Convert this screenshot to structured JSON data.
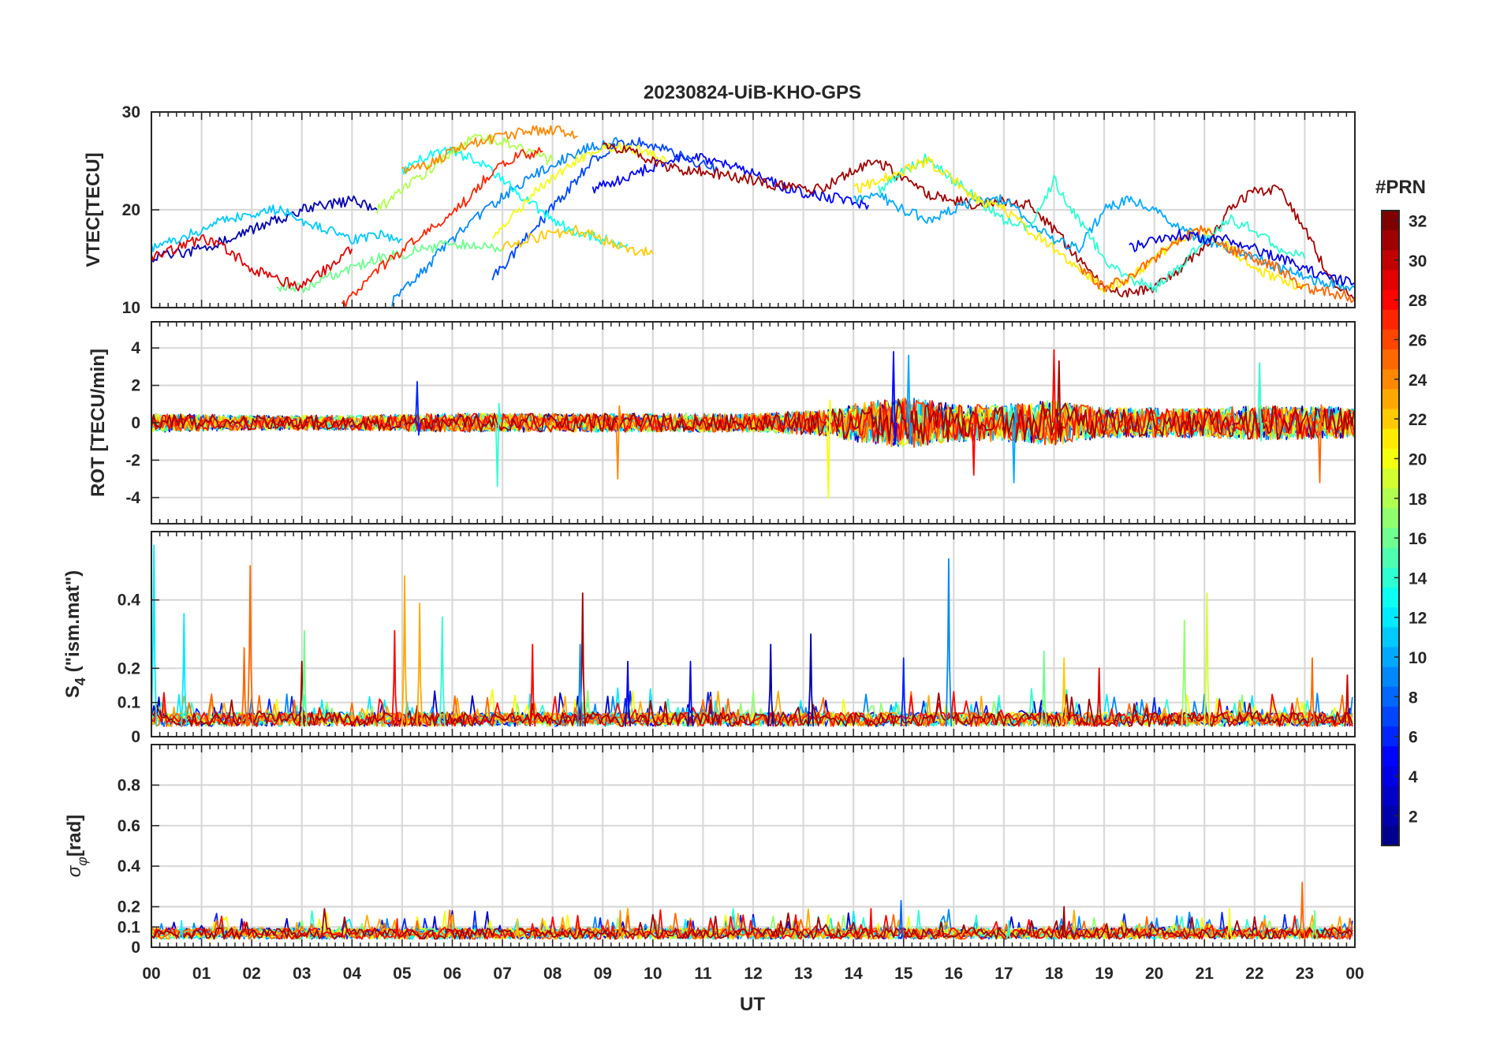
{
  "chart_data": {
    "type": "line",
    "title": "20230824-UiB-KHO-GPS",
    "xlabel": "UT",
    "x_ticks": [
      "00",
      "01",
      "02",
      "03",
      "04",
      "05",
      "06",
      "07",
      "08",
      "09",
      "10",
      "11",
      "12",
      "13",
      "14",
      "15",
      "16",
      "17",
      "18",
      "19",
      "20",
      "21",
      "22",
      "23",
      "00"
    ],
    "xlim": [
      0,
      24
    ],
    "colorbar": {
      "label": "#PRN",
      "range": [
        1,
        32
      ],
      "ticks": [
        "2",
        "4",
        "6",
        "8",
        "10",
        "12",
        "14",
        "16",
        "18",
        "20",
        "22",
        "24",
        "26",
        "28",
        "30",
        "32"
      ],
      "colormap": "jet",
      "stops": [
        "#00008f",
        "#0000ff",
        "#0080ff",
        "#00ffff",
        "#80ff80",
        "#ffff00",
        "#ff8000",
        "#ff0000",
        "#800000"
      ]
    },
    "panels": [
      {
        "id": "vtec",
        "ylabel": "VTEC[TECU]",
        "ylim": [
          10,
          30
        ],
        "y_ticks": [
          {
            "v": 10,
            "t": "10"
          },
          {
            "v": 20,
            "t": "20"
          },
          {
            "v": 30,
            "t": "30"
          }
        ],
        "series": [
          {
            "prn": 2,
            "x": [
              0,
              0.5,
              1,
              1.5,
              2,
              2.5,
              3,
              3.5,
              4,
              4.5
            ],
            "y": [
              15,
              15.5,
              16,
              17,
              18,
              19,
              20,
              20.5,
              21,
              20
            ]
          },
          {
            "prn": 5,
            "x": [
              8.8,
              9.3,
              9.8,
              10.3,
              10.8,
              11.3,
              11.8,
              12.3,
              12.8,
              13.3,
              13.8,
              14.3
            ],
            "y": [
              22,
              23,
              24,
              25,
              25.5,
              25,
              24,
              23,
              22,
              21.5,
              21,
              20.5
            ]
          },
          {
            "prn": 7,
            "x": [
              6.8,
              7.3,
              7.8,
              8.3,
              8.8,
              9.3,
              9.8,
              10.3,
              10.8,
              11.3
            ],
            "y": [
              13,
              16,
              19,
              22,
              25,
              26.5,
              27,
              26,
              25,
              24
            ]
          },
          {
            "prn": 9,
            "x": [
              4.8,
              5.3,
              5.8,
              6.3,
              6.8,
              7.3,
              7.8,
              8.3,
              8.8,
              9.3
            ],
            "y": [
              10.5,
              13,
              16,
              18.5,
              20.5,
              22.5,
              24,
              25.5,
              26.5,
              27
            ]
          },
          {
            "prn": 11,
            "x": [
              0,
              0.5,
              1,
              1.5,
              2,
              2.5,
              3,
              3.5,
              4,
              4.5,
              5
            ],
            "y": [
              16,
              17,
              18,
              19,
              19.5,
              20,
              19,
              18,
              17,
              17.5,
              17
            ]
          },
          {
            "prn": 13,
            "x": [
              5,
              5.5,
              6,
              6.5,
              7,
              7.5,
              8,
              8.5,
              9,
              9.5
            ],
            "y": [
              24,
              25.5,
              26,
              25,
              23,
              21,
              19,
              17.5,
              17,
              16.5
            ]
          },
          {
            "prn": 16,
            "x": [
              2.5,
              3,
              3.5,
              4,
              4.5,
              5,
              5.5,
              6,
              6.5,
              7
            ],
            "y": [
              12,
              12,
              13,
              14,
              15,
              15.5,
              16,
              16.5,
              16.5,
              16
            ]
          },
          {
            "prn": 18,
            "x": [
              4.5,
              5,
              5.5,
              6,
              6.5,
              7,
              7.5,
              8
            ],
            "y": [
              20,
              22,
              24,
              26,
              27.5,
              27,
              26,
              25
            ]
          },
          {
            "prn": 20,
            "x": [
              6.8,
              7.3,
              7.8,
              8.3,
              8.8,
              9.3,
              9.8,
              10.3
            ],
            "y": [
              17,
              20,
              22.5,
              24.5,
              26,
              26.5,
              26,
              25
            ]
          },
          {
            "prn": 22,
            "x": [
              7,
              7.5,
              8,
              8.5,
              9,
              9.5,
              10
            ],
            "y": [
              16,
              17,
              17.5,
              18,
              17,
              16,
              15.5
            ]
          },
          {
            "prn": 24,
            "x": [
              5,
              5.5,
              6,
              6.5,
              7,
              7.5,
              8,
              8.5
            ],
            "y": [
              24,
              24.5,
              26,
              27,
              27.5,
              28,
              28.2,
              27.5
            ]
          },
          {
            "prn": 27,
            "x": [
              3.8,
              4.3,
              4.8,
              5.3,
              5.8,
              6.3,
              6.8,
              7.3,
              7.8
            ],
            "y": [
              10,
              13,
              15,
              17,
              19,
              21,
              24,
              25.5,
              26
            ]
          },
          {
            "prn": 29,
            "x": [
              0,
              0.5,
              1,
              1.5,
              2,
              2.5,
              3,
              3.5,
              4
            ],
            "y": [
              15,
              16,
              17,
              16,
              14,
              13,
              12,
              14,
              16
            ]
          },
          {
            "prn": 31,
            "x": [
              9,
              9.5,
              10,
              10.5,
              11,
              11.5,
              12,
              12.5,
              13,
              13.5,
              14,
              14.5,
              15,
              15.5,
              16,
              16.5,
              17,
              17.5,
              18,
              18.5,
              19,
              19.5,
              20,
              20.5,
              21,
              21.5,
              22,
              22.5,
              23,
              23.5,
              24
            ],
            "y": [
              26.5,
              26,
              25,
              24,
              24,
              23.5,
              23,
              22.5,
              22,
              22.5,
              24,
              25,
              23,
              21.5,
              21,
              20.5,
              21,
              20.5,
              18,
              15,
              12,
              11.5,
              12,
              14,
              16,
              20,
              22,
              22,
              18,
              13,
              11
            ]
          },
          {
            "prn": 10,
            "x": [
              14,
              14.5,
              15,
              15.5,
              16,
              16.5,
              17,
              17.5,
              18,
              18.5,
              19,
              19.5,
              20,
              20.5,
              21,
              21.5,
              22,
              22.5,
              23,
              23.5,
              24
            ],
            "y": [
              21,
              21.5,
              20,
              19,
              20,
              21,
              21,
              19,
              17,
              16,
              20,
              21,
              20,
              18,
              17,
              16,
              15,
              14,
              13,
              12.5,
              12
            ]
          },
          {
            "prn": 14,
            "x": [
              14.5,
              15,
              15.5,
              16,
              16.5,
              17,
              17.5,
              18,
              18.5,
              19,
              19.5,
              20,
              20.5,
              21,
              21.5,
              22,
              22.5,
              23
            ],
            "y": [
              22,
              24,
              25.5,
              23,
              21,
              19,
              18,
              23,
              19,
              15,
              13,
              12,
              14,
              17,
              19,
              18,
              16,
              15
            ]
          },
          {
            "prn": 21,
            "x": [
              14,
              14.5,
              15,
              15.5,
              16,
              16.5,
              17,
              17.5,
              18,
              18.5,
              19,
              19.5,
              20,
              20.5,
              21,
              21.5,
              22,
              22.5,
              23
            ],
            "y": [
              22,
              23,
              24,
              25,
              23,
              21,
              20,
              18,
              16,
              14,
              12,
              13,
              15,
              17,
              18,
              16,
              14,
              13,
              12
            ]
          },
          {
            "prn": 25,
            "x": [
              18.5,
              19,
              19.5,
              20,
              20.5,
              21,
              21.5,
              22,
              22.5,
              23,
              23.5,
              24
            ],
            "y": [
              14,
              12,
              13,
              15,
              17,
              18,
              16,
              15,
              14,
              12,
              11.5,
              11
            ]
          },
          {
            "prn": 4,
            "x": [
              19.5,
              20,
              20.5,
              21,
              21.5,
              22,
              22.5,
              23,
              23.5,
              24
            ],
            "y": [
              16,
              17,
              17.5,
              17,
              17,
              16,
              15,
              14,
              13,
              12.5
            ]
          }
        ]
      },
      {
        "id": "rot",
        "ylabel": "ROT [TECU/min]",
        "ylim": [
          -5.4,
          5.4
        ],
        "y_ticks": [
          {
            "v": -4,
            "t": "-4"
          },
          {
            "v": -2,
            "t": "-2"
          },
          {
            "v": 0,
            "t": "0"
          },
          {
            "v": 2,
            "t": "2"
          },
          {
            "v": 4,
            "t": "4"
          }
        ],
        "activity": [
          [
            0,
            0.5
          ],
          [
            2,
            0.4
          ],
          [
            4,
            0.4
          ],
          [
            6,
            0.5
          ],
          [
            8,
            0.5
          ],
          [
            10,
            0.5
          ],
          [
            12,
            0.5
          ],
          [
            13.5,
            0.7
          ],
          [
            14,
            1.0
          ],
          [
            15,
            1.4
          ],
          [
            16,
            1.0
          ],
          [
            17,
            1.0
          ],
          [
            18,
            1.2
          ],
          [
            19,
            0.8
          ],
          [
            20,
            0.8
          ],
          [
            21,
            0.8
          ],
          [
            22,
            0.9
          ],
          [
            23,
            0.9
          ],
          [
            24,
            0.8
          ]
        ],
        "spikes": [
          {
            "x": 5.3,
            "y": 2.2,
            "prn": 6
          },
          {
            "x": 6.9,
            "y": -3.4,
            "prn": 14
          },
          {
            "x": 9.3,
            "y": -3.0,
            "prn": 24
          },
          {
            "x": 13.5,
            "y": -4.0,
            "prn": 20
          },
          {
            "x": 14.8,
            "y": 3.8,
            "prn": 5
          },
          {
            "x": 15.1,
            "y": 3.6,
            "prn": 10
          },
          {
            "x": 16.4,
            "y": -2.8,
            "prn": 28
          },
          {
            "x": 18.0,
            "y": 3.9,
            "prn": 28
          },
          {
            "x": 18.1,
            "y": 3.3,
            "prn": 31
          },
          {
            "x": 17.2,
            "y": -3.2,
            "prn": 10
          },
          {
            "x": 22.1,
            "y": 3.2,
            "prn": 14
          },
          {
            "x": 23.3,
            "y": -3.2,
            "prn": 25
          }
        ]
      },
      {
        "id": "s4",
        "ylabel": "S4 (\"ism.mat\")",
        "ylim": [
          0,
          0.6
        ],
        "y_ticks": [
          {
            "v": 0,
            "t": "0"
          },
          {
            "v": 0.1,
            "t": "0.1"
          },
          {
            "v": 0.2,
            "t": "0.2"
          },
          {
            "v": 0.4,
            "t": "0.4"
          }
        ],
        "baseline": 0.03,
        "spikes": [
          {
            "x": 0.05,
            "y": 0.56,
            "prn": 12
          },
          {
            "x": 0.65,
            "y": 0.36,
            "prn": 12
          },
          {
            "x": 1.85,
            "y": 0.26,
            "prn": 25
          },
          {
            "x": 1.97,
            "y": 0.5,
            "prn": 25
          },
          {
            "x": 3.0,
            "y": 0.22,
            "prn": 31
          },
          {
            "x": 3.05,
            "y": 0.31,
            "prn": 16
          },
          {
            "x": 4.85,
            "y": 0.31,
            "prn": 28
          },
          {
            "x": 5.05,
            "y": 0.47,
            "prn": 23
          },
          {
            "x": 5.35,
            "y": 0.39,
            "prn": 23
          },
          {
            "x": 5.8,
            "y": 0.35,
            "prn": 14
          },
          {
            "x": 7.6,
            "y": 0.27,
            "prn": 28
          },
          {
            "x": 8.6,
            "y": 0.42,
            "prn": 31
          },
          {
            "x": 8.55,
            "y": 0.27,
            "prn": 9
          },
          {
            "x": 9.5,
            "y": 0.22,
            "prn": 4
          },
          {
            "x": 10.75,
            "y": 0.22,
            "prn": 4
          },
          {
            "x": 12.35,
            "y": 0.27,
            "prn": 2
          },
          {
            "x": 13.15,
            "y": 0.3,
            "prn": 2
          },
          {
            "x": 15.9,
            "y": 0.52,
            "prn": 9
          },
          {
            "x": 15.0,
            "y": 0.23,
            "prn": 6
          },
          {
            "x": 17.8,
            "y": 0.25,
            "prn": 16
          },
          {
            "x": 18.2,
            "y": 0.23,
            "prn": 22
          },
          {
            "x": 18.9,
            "y": 0.2,
            "prn": 29
          },
          {
            "x": 20.6,
            "y": 0.34,
            "prn": 17
          },
          {
            "x": 21.05,
            "y": 0.42,
            "prn": 19
          },
          {
            "x": 23.15,
            "y": 0.23,
            "prn": 25
          },
          {
            "x": 23.85,
            "y": 0.18,
            "prn": 30
          }
        ]
      },
      {
        "id": "sigma",
        "ylabel": "σφ[rad]",
        "ylim": [
          0,
          1
        ],
        "y_ticks": [
          {
            "v": 0,
            "t": "0"
          },
          {
            "v": 0.1,
            "t": "0.1"
          },
          {
            "v": 0.2,
            "t": "0.2"
          },
          {
            "v": 0.4,
            "t": "0.4"
          },
          {
            "v": 0.6,
            "t": "0.6"
          },
          {
            "v": 0.8,
            "t": "0.8"
          }
        ],
        "baseline": 0.04,
        "spikes": [
          {
            "x": 0.6,
            "y": 0.13,
            "prn": 12
          },
          {
            "x": 4.9,
            "y": 0.14,
            "prn": 28
          },
          {
            "x": 7.3,
            "y": 0.14,
            "prn": 22
          },
          {
            "x": 9.35,
            "y": 0.18,
            "prn": 24
          },
          {
            "x": 14.35,
            "y": 0.19,
            "prn": 28
          },
          {
            "x": 14.95,
            "y": 0.23,
            "prn": 8
          },
          {
            "x": 17.1,
            "y": 0.13,
            "prn": 14
          },
          {
            "x": 18.2,
            "y": 0.2,
            "prn": 31
          },
          {
            "x": 21.5,
            "y": 0.19,
            "prn": 20
          },
          {
            "x": 22.95,
            "y": 0.32,
            "prn": 25
          },
          {
            "x": 23.2,
            "y": 0.18,
            "prn": 16
          }
        ]
      }
    ]
  }
}
